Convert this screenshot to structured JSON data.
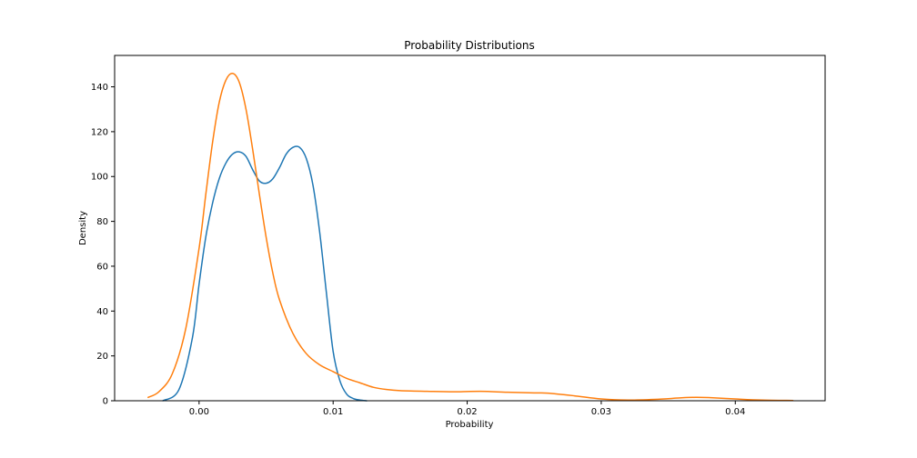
{
  "chart_data": {
    "type": "line",
    "title": "Probability Distributions",
    "xlabel": "Probability",
    "ylabel": "Density",
    "xlim": [
      -0.0063,
      0.0467
    ],
    "ylim": [
      0,
      154
    ],
    "grid": false,
    "xticks": [
      0.0,
      0.01,
      0.02,
      0.03,
      0.04
    ],
    "xtick_labels": [
      "0.00",
      "0.01",
      "0.02",
      "0.03",
      "0.04"
    ],
    "yticks": [
      0,
      20,
      40,
      60,
      80,
      100,
      120,
      140
    ],
    "ytick_labels": [
      "0",
      "20",
      "40",
      "60",
      "80",
      "100",
      "120",
      "140"
    ],
    "series": [
      {
        "color": "#1f77b4",
        "x": [
          -0.0027,
          -0.0015,
          -0.0005,
          0.0,
          0.0005,
          0.001,
          0.0015,
          0.002,
          0.0025,
          0.003,
          0.0035,
          0.004,
          0.0045,
          0.005,
          0.0055,
          0.006,
          0.0065,
          0.007,
          0.0075,
          0.008,
          0.0085,
          0.009,
          0.0095,
          0.01,
          0.0105,
          0.011,
          0.0115,
          0.012,
          0.0125
        ],
        "y": [
          0,
          5,
          28,
          52,
          73,
          88,
          99,
          106,
          110,
          111,
          109,
          103,
          98,
          97,
          99,
          104,
          110,
          113,
          113,
          108,
          96,
          75,
          48,
          22,
          9,
          3,
          1,
          0.3,
          0
        ]
      },
      {
        "color": "#ff7f0e",
        "x": [
          -0.0038,
          -0.003,
          -0.002,
          -0.001,
          0.0,
          0.0005,
          0.001,
          0.0015,
          0.002,
          0.0025,
          0.003,
          0.0035,
          0.004,
          0.0045,
          0.005,
          0.0055,
          0.006,
          0.007,
          0.008,
          0.009,
          0.01,
          0.011,
          0.012,
          0.013,
          0.014,
          0.015,
          0.017,
          0.019,
          0.021,
          0.023,
          0.025,
          0.026,
          0.028,
          0.03,
          0.032,
          0.034,
          0.036,
          0.037,
          0.038,
          0.04,
          0.042,
          0.0443
        ],
        "y": [
          1.5,
          4,
          12,
          32,
          68,
          92,
          115,
          133,
          143,
          146,
          142,
          130,
          112,
          92,
          73,
          57,
          45,
          30,
          21,
          16,
          13,
          10,
          8,
          6,
          5,
          4.5,
          4.2,
          4,
          4.2,
          3.8,
          3.5,
          3.4,
          2.2,
          0.8,
          0.3,
          0.6,
          1.3,
          1.5,
          1.4,
          0.8,
          0.3,
          0.1
        ]
      }
    ]
  }
}
